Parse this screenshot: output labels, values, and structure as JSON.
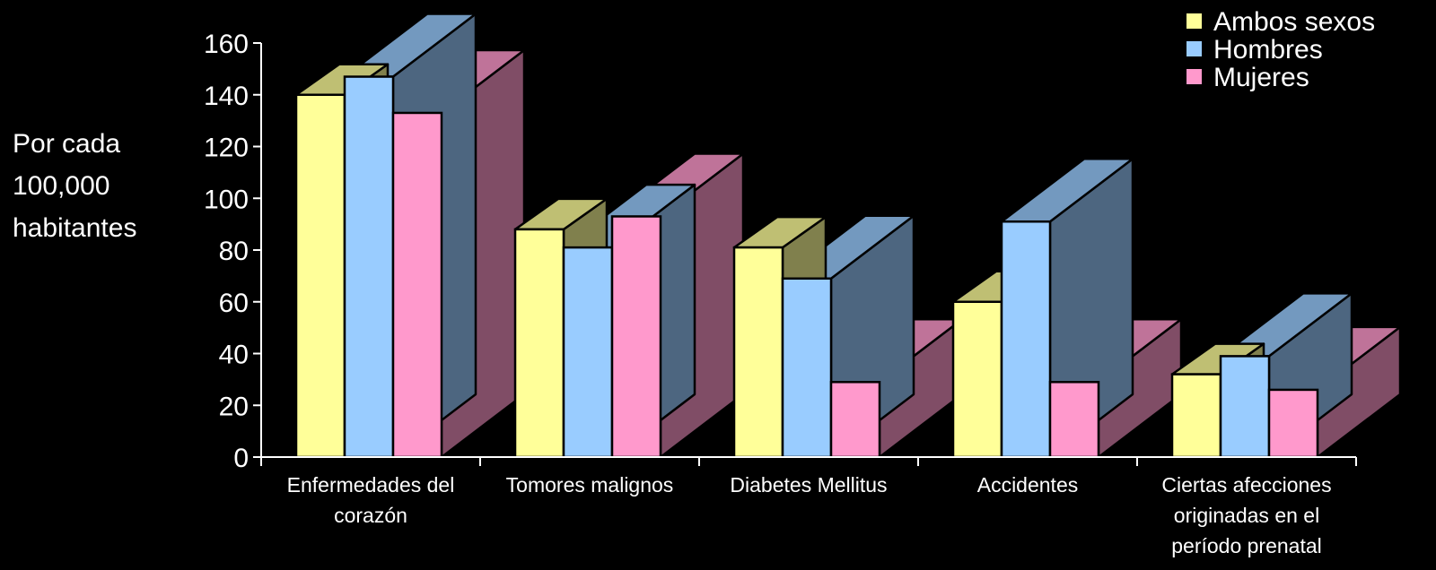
{
  "chart_data": {
    "type": "bar",
    "title": "",
    "xlabel": "",
    "ylabel_lines": [
      "Por cada",
      "100,000",
      "habitantes"
    ],
    "ylim": [
      0,
      160
    ],
    "ytick_step": 20,
    "yticks": [
      "0",
      "20",
      "40",
      "60",
      "80",
      "100",
      "120",
      "140",
      "160"
    ],
    "grid": false,
    "legend_position": "top-right",
    "categories": [
      {
        "lines": [
          "Enfermedades del",
          "corazón"
        ]
      },
      {
        "lines": [
          "Tomores malignos"
        ]
      },
      {
        "lines": [
          "Diabetes Mellitus"
        ]
      },
      {
        "lines": [
          "Accidentes"
        ]
      },
      {
        "lines": [
          "Ciertas afecciones",
          "originadas en el",
          "período prenatal"
        ]
      }
    ],
    "series": [
      {
        "name": "Ambos sexos",
        "color": "#ffff99",
        "values": [
          140,
          88,
          81,
          60,
          32
        ]
      },
      {
        "name": "Hombres",
        "color": "#99ccff",
        "values": [
          147,
          81,
          69,
          91,
          39
        ]
      },
      {
        "name": "Mujeres",
        "color": "#ff99cc",
        "values": [
          133,
          93,
          29,
          29,
          26
        ]
      }
    ]
  }
}
